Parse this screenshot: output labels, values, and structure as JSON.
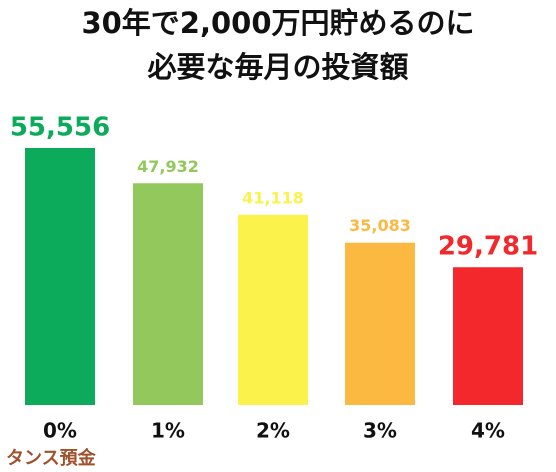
{
  "chart_data": {
    "type": "bar",
    "title": [
      "30年で2,000万円貯めるのに",
      "必要な毎月の投資額"
    ],
    "categories": [
      "0%",
      "1%",
      "2%",
      "3%",
      "4%"
    ],
    "values": [
      55556,
      47932,
      41118,
      35083,
      29781
    ],
    "value_labels": [
      "55,556",
      "47,932",
      "41,118",
      "35,083",
      "29,781"
    ],
    "colors": [
      "#0bab5b",
      "#93c95c",
      "#fbf34c",
      "#fbb942",
      "#f2282c"
    ],
    "annotation": "タンス預金"
  }
}
